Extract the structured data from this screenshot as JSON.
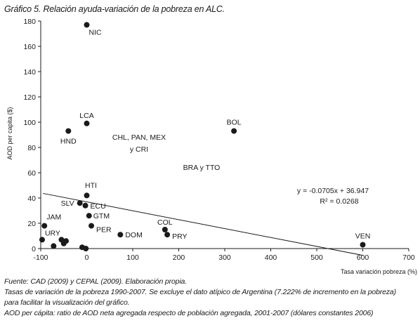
{
  "title": "Gráfico 5. Relación ayuda-variación de la pobreza en ALC.",
  "chart_data": {
    "type": "scatter",
    "xlabel": "Tasa variación pobreza (%)",
    "ylabel": "AOD per capita ($)",
    "xlim": [
      -100,
      700
    ],
    "ylim": [
      0,
      180
    ],
    "xticks": [
      -100,
      0,
      100,
      200,
      300,
      400,
      500,
      600,
      700
    ],
    "yticks": [
      0,
      20,
      40,
      60,
      80,
      100,
      120,
      140,
      160,
      180
    ],
    "grid": false,
    "points": [
      {
        "label": "NIC",
        "x": 0,
        "y": 177
      },
      {
        "label": "LCA",
        "x": 0,
        "y": 99
      },
      {
        "label": "HND",
        "x": -40,
        "y": 93
      },
      {
        "label": "BOL",
        "x": 320,
        "y": 93
      },
      {
        "label": "HTI",
        "x": 0,
        "y": 42
      },
      {
        "label": "SLV",
        "x": -15,
        "y": 36
      },
      {
        "label": "ECU",
        "x": -3,
        "y": 34
      },
      {
        "label": "GTM",
        "x": 5,
        "y": 26
      },
      {
        "label": "PER",
        "x": 10,
        "y": 18
      },
      {
        "label": "DOM",
        "x": 73,
        "y": 11
      },
      {
        "label": "COL",
        "x": 170,
        "y": 15
      },
      {
        "label": "PRY",
        "x": 175,
        "y": 11
      },
      {
        "label": "JAM",
        "x": -92,
        "y": 18
      },
      {
        "label": "URY",
        "x": -97,
        "y": 7
      },
      {
        "label": "",
        "x": -72,
        "y": 2
      },
      {
        "label": "",
        "x": -55,
        "y": 7
      },
      {
        "label": "",
        "x": -50,
        "y": 4
      },
      {
        "label": "",
        "x": -45,
        "y": 6
      },
      {
        "label": "",
        "x": -10,
        "y": 1
      },
      {
        "label": "",
        "x": -2,
        "y": 0
      },
      {
        "label": "VEN",
        "x": 600,
        "y": 3
      }
    ],
    "annotations": [
      "CHL, PAN, MEX",
      "y CRI",
      "BRA y TTO"
    ],
    "trendline": {
      "slope": -0.0705,
      "intercept": 36.947,
      "equation": "y = -0.0705x + 36.947",
      "r2": "R² = 0.0268"
    }
  },
  "notes": {
    "source": "Fuente: CAD (2009) y CEPAL (2009). Elaboración propia.",
    "line2": "Tasas de variación de la pobreza 1990-2007. Se excluye el dato atípico de Argentina (7.222% de incremento en la pobreza)",
    "line3": "para facilitar la visualización del gráfico.",
    "line4": "AOD per cápita: ratio de AOD neta agregada respecto de población agregada, 2001-2007 (dólares constantes 2006)"
  }
}
